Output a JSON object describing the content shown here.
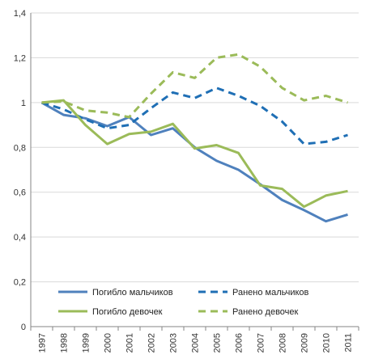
{
  "chart_data": {
    "type": "line",
    "categories": [
      "1997",
      "1998",
      "1999",
      "2000",
      "2001",
      "2002",
      "2003",
      "2004",
      "2005",
      "2006",
      "2007",
      "2008",
      "2009",
      "2010",
      "2011"
    ],
    "ylim": [
      0,
      1.4
    ],
    "yticks": [
      0,
      0.2,
      0.4,
      0.6,
      0.8,
      1,
      1.2,
      1.4
    ],
    "ytick_labels": [
      "0",
      "0,2",
      "0,4",
      "0,6",
      "0,8",
      "1",
      "1,2",
      "1,4"
    ],
    "grid": true,
    "legend_position": "bottom-inside",
    "series": [
      {
        "name": "Погибло мальчиков",
        "color": "#4f81bd",
        "dash": "solid",
        "values": [
          1,
          0.945,
          0.93,
          0.895,
          0.935,
          0.855,
          0.885,
          0.8,
          0.74,
          0.7,
          0.635,
          0.565,
          0.52,
          0.47,
          0.5
        ]
      },
      {
        "name": "Ранено мальчиков",
        "color": "#1f6fb5",
        "dash": "dashed",
        "values": [
          1,
          0.97,
          0.925,
          0.885,
          0.9,
          0.975,
          1.045,
          1.02,
          1.065,
          1.03,
          0.985,
          0.915,
          0.815,
          0.825,
          0.855
        ]
      },
      {
        "name": "Погибло девочек",
        "color": "#9bbb59",
        "dash": "solid",
        "values": [
          1,
          1.01,
          0.9,
          0.815,
          0.86,
          0.87,
          0.905,
          0.795,
          0.81,
          0.775,
          0.63,
          0.615,
          0.535,
          0.585,
          0.605
        ]
      },
      {
        "name": "Ранено девочек",
        "color": "#9bbb59",
        "dash": "dashed",
        "values": [
          1,
          1.005,
          0.965,
          0.955,
          0.935,
          1.04,
          1.135,
          1.11,
          1.2,
          1.215,
          1.16,
          1.065,
          1.01,
          1.03,
          1
        ]
      }
    ]
  }
}
